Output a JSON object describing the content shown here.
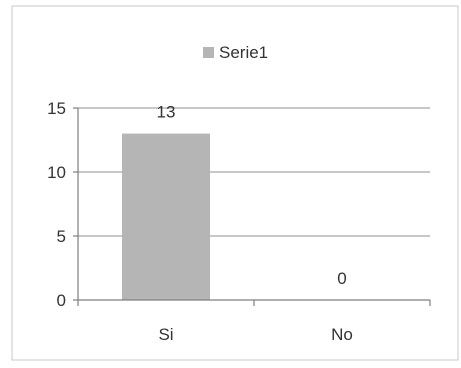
{
  "chart_data": {
    "type": "bar",
    "categories": [
      "Si",
      "No"
    ],
    "series": [
      {
        "name": "Serie1",
        "values": [
          13,
          0
        ]
      }
    ],
    "data_labels": [
      "13",
      "0"
    ],
    "ylim": [
      0,
      15
    ],
    "yticks": [
      0,
      5,
      10,
      15
    ],
    "ytick_labels": [
      "0",
      "5",
      "10",
      "15"
    ],
    "grid": true,
    "legend_position": "top-center",
    "colors": {
      "bar": "#b5b5b5",
      "gridline": "#a6a6a6",
      "axis": "#7f7f7f",
      "border": "#c9c9c9",
      "text": "#333333"
    }
  }
}
